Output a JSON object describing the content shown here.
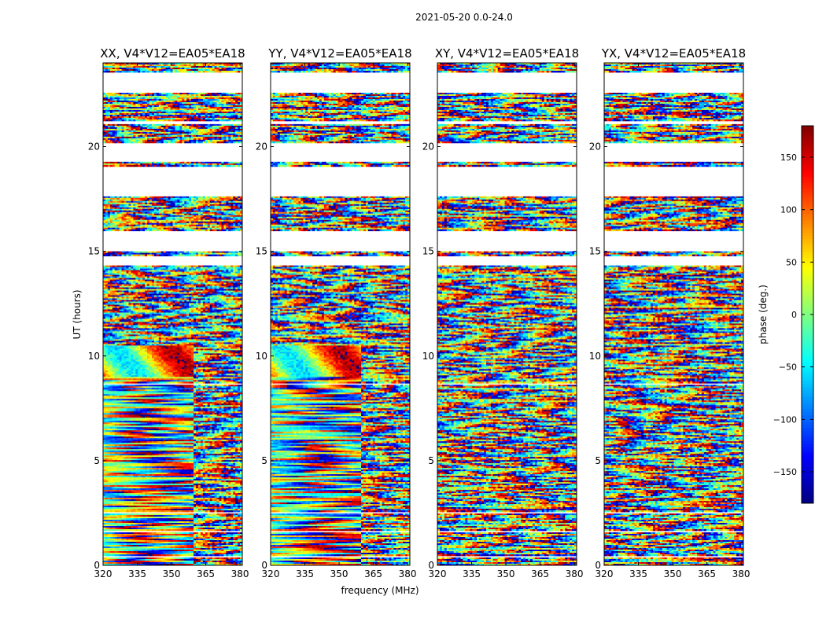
{
  "figure": {
    "suptitle": "2021-05-20 0.0-24.0"
  },
  "chart_data": {
    "type": "heatmap",
    "xlabel": "frequency (MHz)",
    "ylabel": "UT (hours)",
    "xlim": [
      320,
      381
    ],
    "ylim": [
      0,
      24
    ],
    "xticks": [
      320,
      335,
      350,
      365,
      380
    ],
    "yticks": [
      0,
      5,
      10,
      15,
      20
    ],
    "panels": [
      {
        "title": "XX, V4*V12=EA05*EA18",
        "pol": "XX"
      },
      {
        "title": "YY, V4*V12=EA05*EA18",
        "pol": "YY"
      },
      {
        "title": "XY, V4*V12=EA05*EA18",
        "pol": "XY"
      },
      {
        "title": "YX, V4*V12=EA05*EA18",
        "pol": "YX"
      }
    ],
    "gaps_hours": [
      [
        0.4,
        0.45
      ],
      [
        1.55,
        1.62
      ],
      [
        2.5,
        2.56
      ],
      [
        8.6,
        8.67
      ],
      [
        14.3,
        14.75
      ],
      [
        15.0,
        16.0
      ],
      [
        17.6,
        19.05
      ],
      [
        19.3,
        20.2
      ],
      [
        21.1,
        21.2
      ],
      [
        22.6,
        23.55
      ]
    ],
    "colorbar": {
      "label": "phase (deg.)",
      "vmin": -180,
      "vmax": 180,
      "ticks": [
        -150,
        -100,
        -50,
        0,
        50,
        100,
        150
      ],
      "colormap": "jet"
    }
  }
}
